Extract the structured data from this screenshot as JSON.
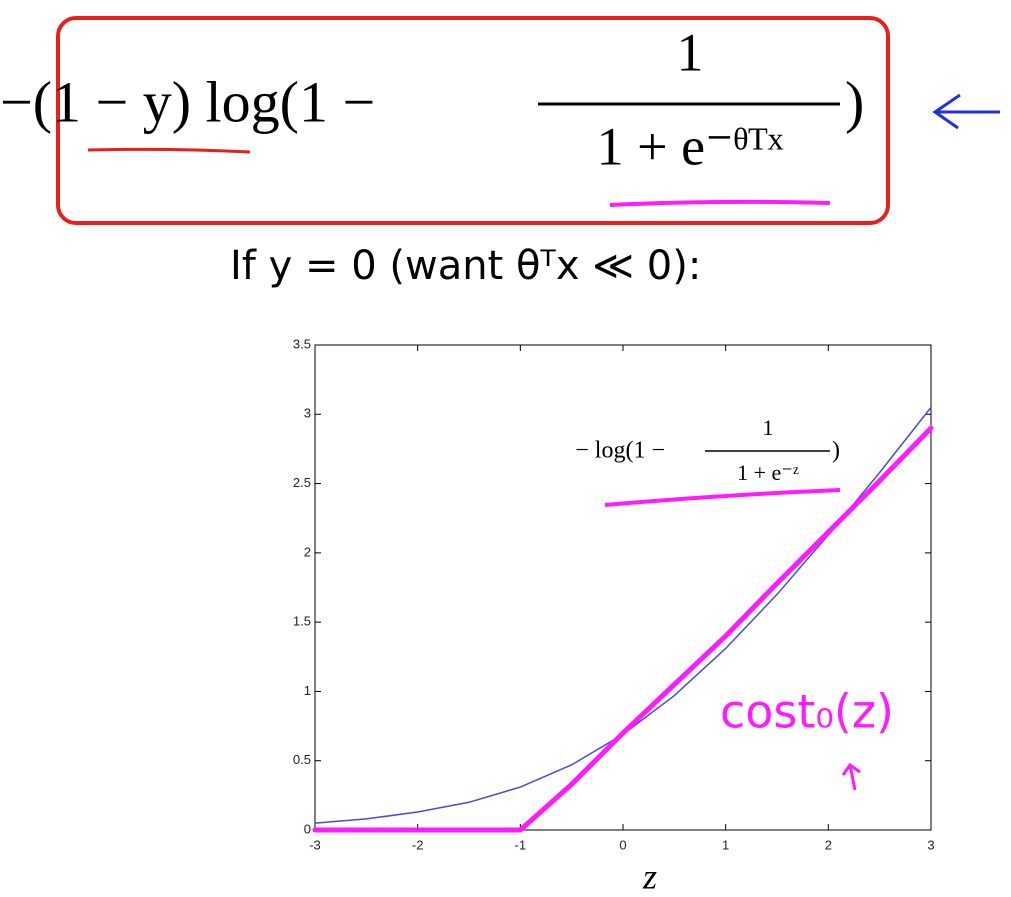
{
  "chart_data": {
    "type": "line",
    "formula": {
      "lead": "−(1 − y) log(1 −",
      "numerator": "1",
      "denominator": "1 + e⁻ᶿᵀˣ",
      "close": ")"
    },
    "subtitle": "If y = 0 (want θᵀx ≪ 0):",
    "xlabel": "z",
    "x": [
      -3,
      -2.5,
      -2,
      -1.5,
      -1,
      -0.5,
      0,
      0.5,
      1,
      1.5,
      2,
      2.5,
      3
    ],
    "series": [
      {
        "color": "#4a4ad6",
        "values": [
          0.05,
          0.08,
          0.13,
          0.2,
          0.31,
          0.47,
          0.69,
          0.97,
          1.31,
          1.7,
          2.13,
          2.58,
          3.05
        ]
      },
      {
        "color": "#ff1aff",
        "values": [
          0,
          0,
          0,
          0,
          0,
          0.33,
          0.7,
          1.05,
          1.4,
          1.78,
          2.15,
          2.52,
          2.9
        ]
      }
    ],
    "annotations": {
      "curve": {
        "lead": "− log(1 −",
        "numerator": "1",
        "denominator": "1 + e⁻ᶻ",
        "close": ")"
      },
      "cost": "cost₀(z)"
    },
    "xlim": [
      -3,
      3
    ],
    "ylim": [
      0,
      3.5
    ],
    "xticks": [
      -3,
      -2,
      -1,
      0,
      1,
      2,
      3
    ],
    "yticks": [
      0,
      0.5,
      1,
      1.5,
      2,
      2.5,
      3,
      3.5
    ]
  }
}
